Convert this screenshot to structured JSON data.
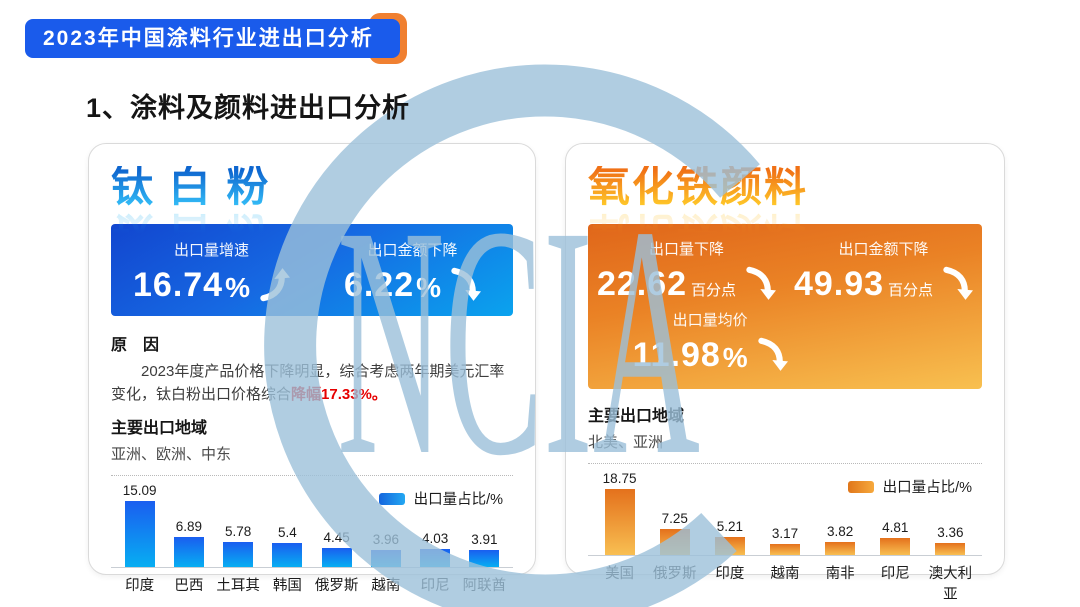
{
  "banner": {
    "title": "2023年中国涂料行业进出口分析"
  },
  "heading": "1、涂料及颜料进出口分析",
  "watermark": {
    "text": "NCIA",
    "color": "#9cc0da"
  },
  "colors": {
    "banner_blue": "#1a5beb",
    "banner_accent_orange": "#f08031",
    "blue_box_gradient": [
      "#1246cf",
      "#0aa3ee"
    ],
    "orange_box_gradient": [
      "#e0661a",
      "#f8c050"
    ],
    "blue_bar_gradient": [
      "#1a5ef0",
      "#07aef2"
    ],
    "orange_bar_gradient": [
      "#e4711c",
      "#f8bf52"
    ],
    "highlight_red": "#e60000"
  },
  "panels": [
    {
      "title": "钛 白 粉",
      "stats": [
        {
          "label": "出口量增速",
          "value": "16.74",
          "unit": "%",
          "direction": "up"
        },
        {
          "label": "出口金额下降",
          "value": "6.22",
          "unit": "%",
          "direction": "down"
        }
      ],
      "reason": {
        "heading": "原　因",
        "text": "2023年度产品价格下降明显，综合考虑两年期美元汇率变化，钛白粉出口价格综合",
        "highlight": "降幅17.33%。"
      },
      "regions": {
        "heading": "主要出口地域",
        "value": "亚洲、欧洲、中东"
      }
    },
    {
      "title": "氧化铁颜料",
      "stats": [
        {
          "label": "出口量下降",
          "value": "22.62",
          "unit": "百分点",
          "direction": "down"
        },
        {
          "label": "出口金额下降",
          "value": "49.93",
          "unit": "百分点",
          "direction": "down"
        },
        {
          "label": "出口量均价",
          "value": "11.98",
          "unit": "%",
          "direction": "down"
        }
      ],
      "regions": {
        "heading": "主要出口地域",
        "value": "北美、亚洲"
      }
    }
  ],
  "chart_data": [
    {
      "type": "bar",
      "title": "钛 白 粉",
      "legend": "出口量占比/%",
      "categories": [
        "印度",
        "巴西",
        "土耳其",
        "韩国",
        "俄罗斯",
        "越南",
        "印尼",
        "阿联酋"
      ],
      "values": [
        15.09,
        6.89,
        5.78,
        5.4,
        4.45,
        3.96,
        4.03,
        3.91
      ],
      "ylim": [
        0,
        15.09
      ],
      "grid": false,
      "legend_position": "top-right"
    },
    {
      "type": "bar",
      "title": "氧化铁颜料",
      "legend": "出口量占比/%",
      "categories": [
        "美国",
        "俄罗斯",
        "印度",
        "越南",
        "南非",
        "印尼",
        "澳大利亚"
      ],
      "values": [
        18.75,
        7.25,
        5.21,
        3.17,
        3.82,
        4.81,
        3.36
      ],
      "ylim": [
        0,
        18.75
      ],
      "grid": false,
      "legend_position": "top-right"
    }
  ]
}
